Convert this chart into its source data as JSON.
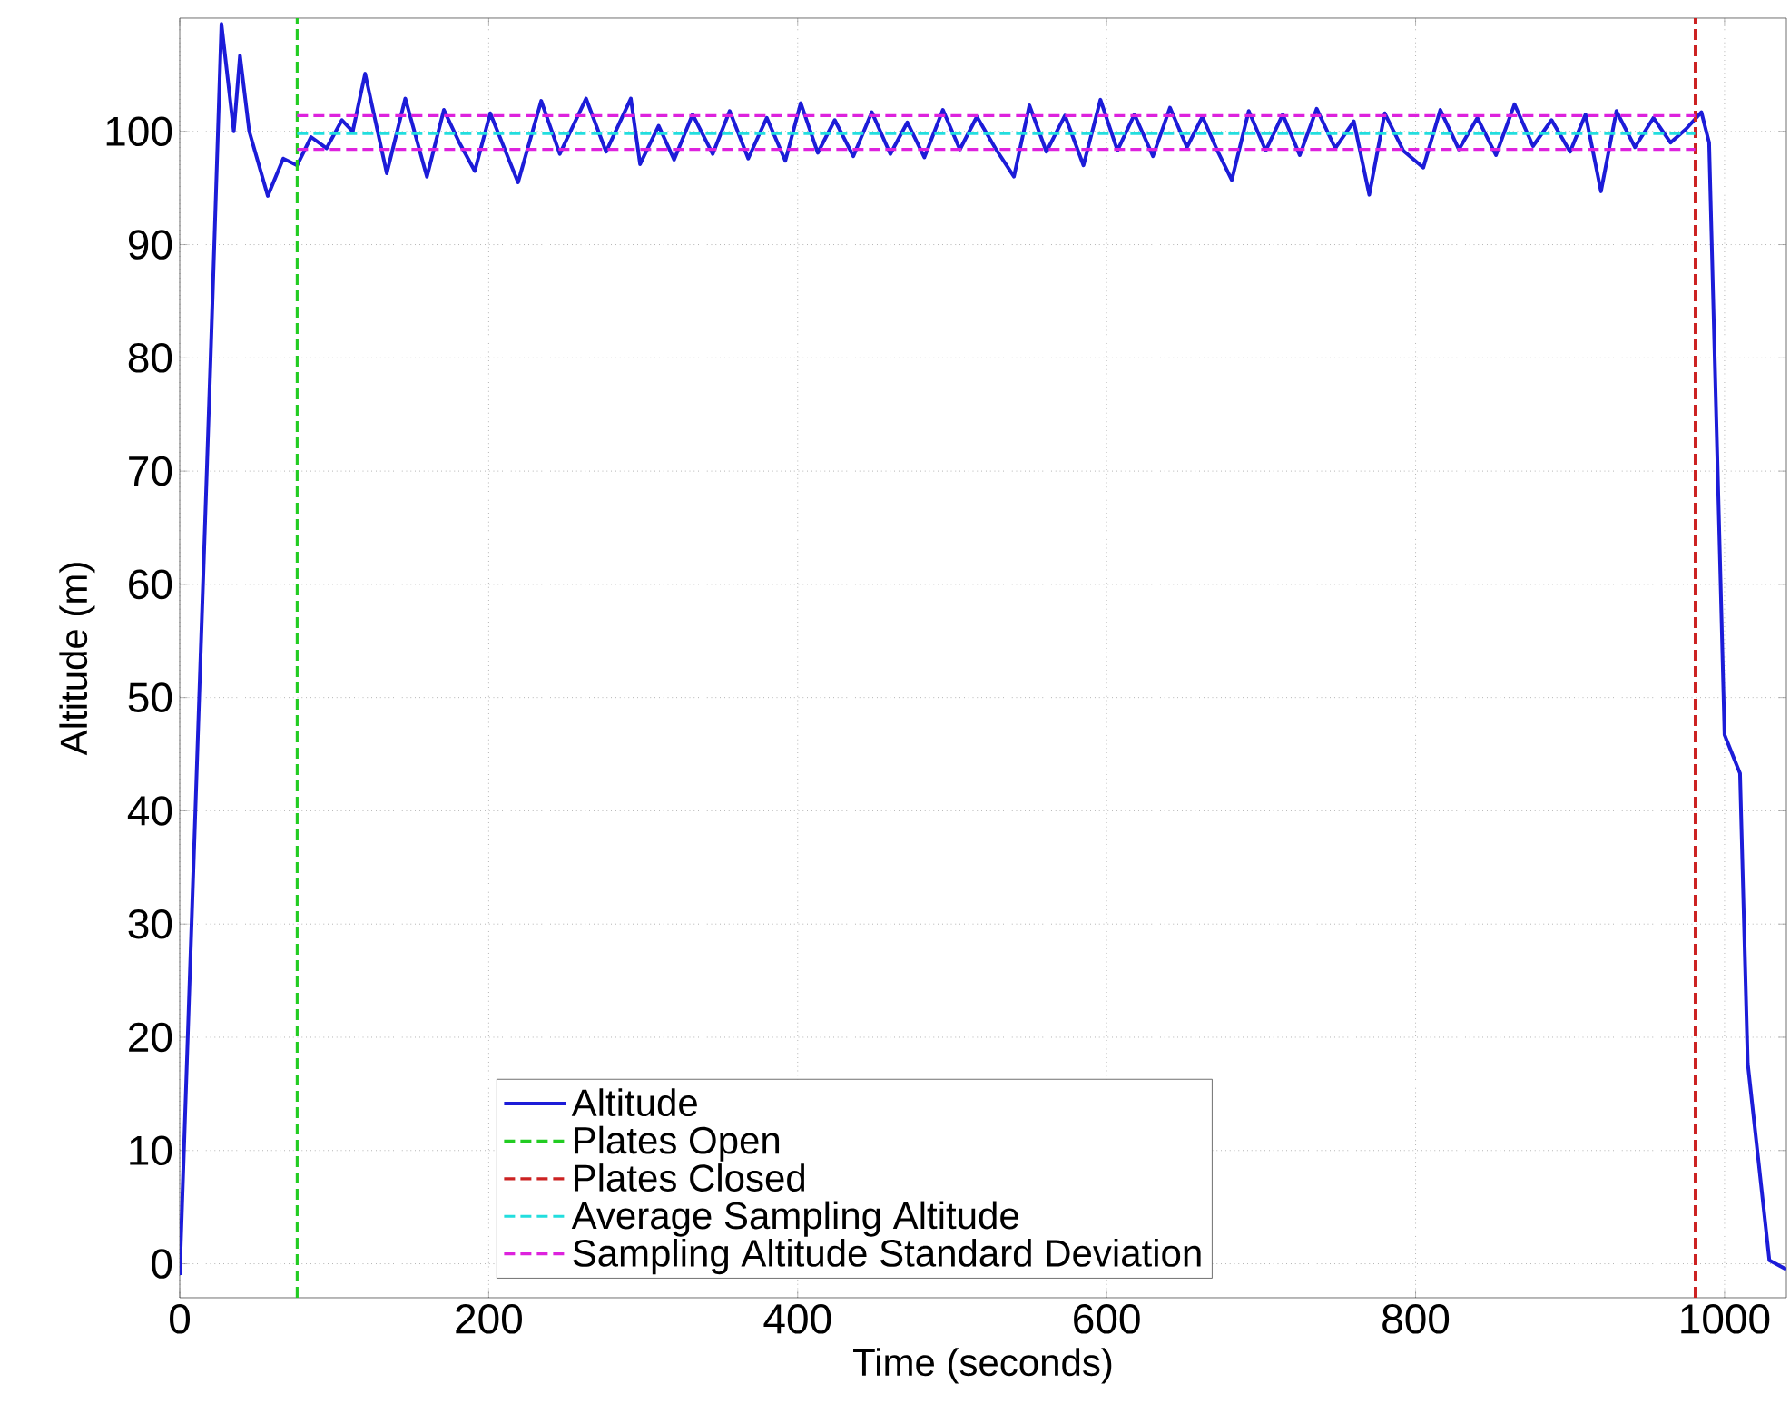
{
  "chart_data": {
    "type": "line",
    "xlabel": "Time (seconds)",
    "ylabel": "Altitude (m)",
    "xlim": [
      0,
      1040
    ],
    "ylim": [
      -3,
      110
    ],
    "xticks": [
      0,
      200,
      400,
      600,
      800,
      1000
    ],
    "yticks": [
      0,
      10,
      20,
      30,
      40,
      50,
      60,
      70,
      80,
      90,
      100
    ],
    "grid": true,
    "legend": "bottom",
    "marker": "none",
    "series": [
      {
        "name": "Altitude",
        "color": "#1c1cd8",
        "line_style": "solid",
        "x": [
          0,
          20,
          27,
          35,
          39,
          45,
          57,
          67,
          76,
          85,
          95,
          105,
          112,
          120,
          134,
          146,
          160,
          171,
          181,
          191,
          201,
          219,
          234,
          246,
          263,
          276,
          292,
          298,
          310,
          320,
          332,
          345,
          356,
          368,
          380,
          392,
          402,
          413,
          424,
          436,
          448,
          460,
          471,
          482,
          494,
          505,
          516,
          528,
          540,
          550,
          561,
          573,
          585,
          596,
          607,
          618,
          630,
          641,
          652,
          662,
          672,
          681,
          692,
          703,
          714,
          725,
          736,
          748,
          760,
          770,
          780,
          792,
          805,
          816,
          828,
          840,
          852,
          864,
          876,
          888,
          900,
          910,
          920,
          930,
          942,
          954,
          965,
          975,
          985,
          990,
          1000,
          1010,
          1015,
          1029,
          1040
        ],
        "values": [
          -1,
          80,
          109.5,
          100,
          106.7,
          100,
          94.3,
          97.6,
          97,
          99.5,
          98.5,
          101,
          100,
          105.1,
          96.3,
          102.9,
          96,
          101.9,
          99,
          96.5,
          101.6,
          95.5,
          102.7,
          98,
          102.9,
          98.2,
          102.9,
          97.1,
          100.5,
          97.5,
          101.5,
          98,
          101.8,
          97.6,
          101.2,
          97.4,
          102.5,
          98.1,
          101,
          97.8,
          101.7,
          98,
          100.8,
          97.7,
          101.9,
          98.4,
          101.3,
          98.5,
          96,
          102.3,
          98.2,
          101.4,
          97,
          102.8,
          98.3,
          101.5,
          97.8,
          102.1,
          98.6,
          101.3,
          98.2,
          95.7,
          101.8,
          98.3,
          101.5,
          97.9,
          102,
          98.5,
          100.9,
          94.4,
          101.6,
          98.3,
          96.8,
          101.9,
          98.4,
          101.2,
          97.9,
          102.4,
          98.7,
          101,
          98.2,
          101.5,
          94.7,
          101.8,
          98.6,
          101.2,
          99,
          100.2,
          101.7,
          99,
          46.7,
          43.3,
          17.7,
          0.3,
          -0.5
        ]
      },
      {
        "name": "Plates Open",
        "color": "#22cc22",
        "line_style": "dashed",
        "x": [
          76,
          76
        ],
        "values": [
          -3,
          110
        ]
      },
      {
        "name": "Plates Closed",
        "color": "#cc2222",
        "line_style": "dashed",
        "x": [
          981,
          981
        ],
        "values": [
          -3,
          110
        ]
      },
      {
        "name": "Average Sampling Altitude",
        "color": "#22dede",
        "line_style": "dashed",
        "x": [
          76,
          981
        ],
        "values": [
          99.8,
          99.8
        ]
      },
      {
        "name": "Sampling Altitude Standard Deviation",
        "color": "#dd22dd",
        "line_style": "dashed",
        "x": [
          76,
          981
        ],
        "values": [
          101.4,
          101.4
        ]
      },
      {
        "color": "#dd22dd",
        "line_style": "dashed",
        "x": [
          76,
          981
        ],
        "values": [
          98.4,
          98.4
        ]
      }
    ]
  }
}
